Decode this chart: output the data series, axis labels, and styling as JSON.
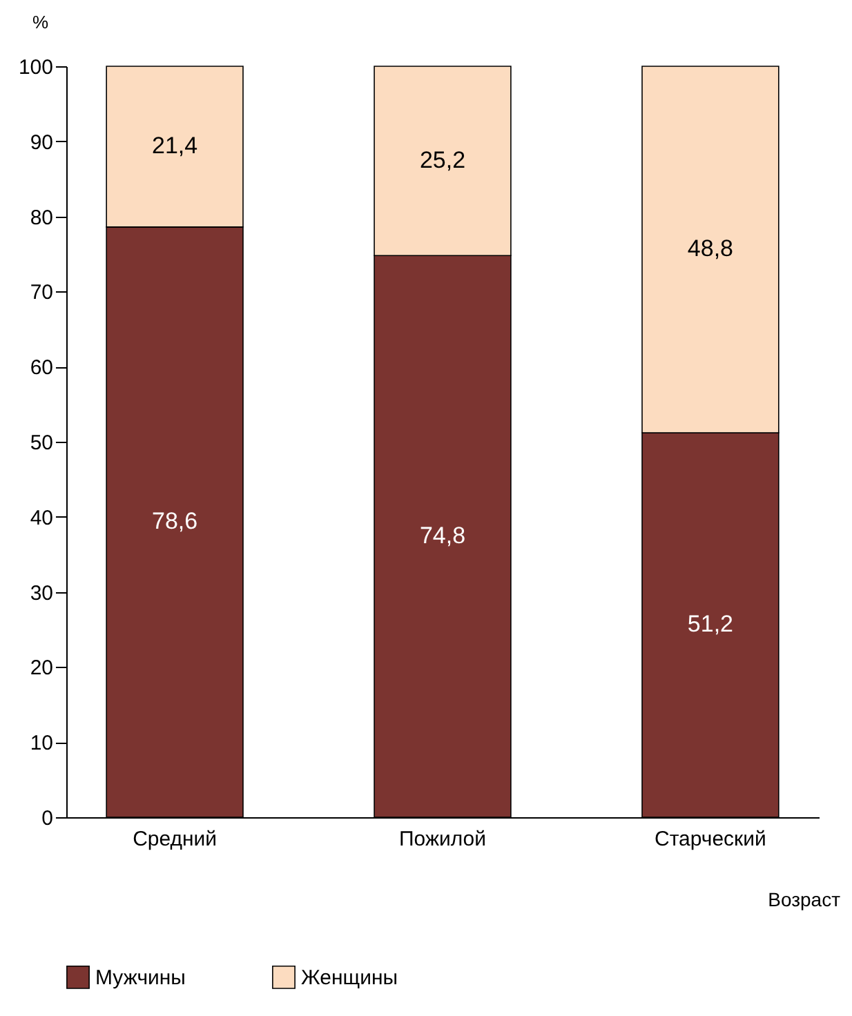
{
  "chart_data": {
    "type": "bar",
    "stacked": true,
    "ylabel": "%",
    "xlabel": "Возраст",
    "categories": [
      "Средний",
      "Пожилой",
      "Старческий"
    ],
    "series": [
      {
        "name": "Мужчины",
        "color": "#7b3430",
        "values": [
          78.6,
          74.8,
          51.2
        ],
        "value_labels": [
          "78,6",
          "74,8",
          "51,2"
        ]
      },
      {
        "name": "Женщины",
        "color": "#fcdcc0",
        "values": [
          21.4,
          25.2,
          48.8
        ],
        "value_labels": [
          "21,4",
          "25,2",
          "48,8"
        ]
      }
    ],
    "ylim": [
      0,
      100
    ],
    "yticks": [
      0,
      10,
      20,
      30,
      40,
      50,
      60,
      70,
      80,
      90,
      100
    ],
    "legend": "bottom",
    "grid": false
  }
}
